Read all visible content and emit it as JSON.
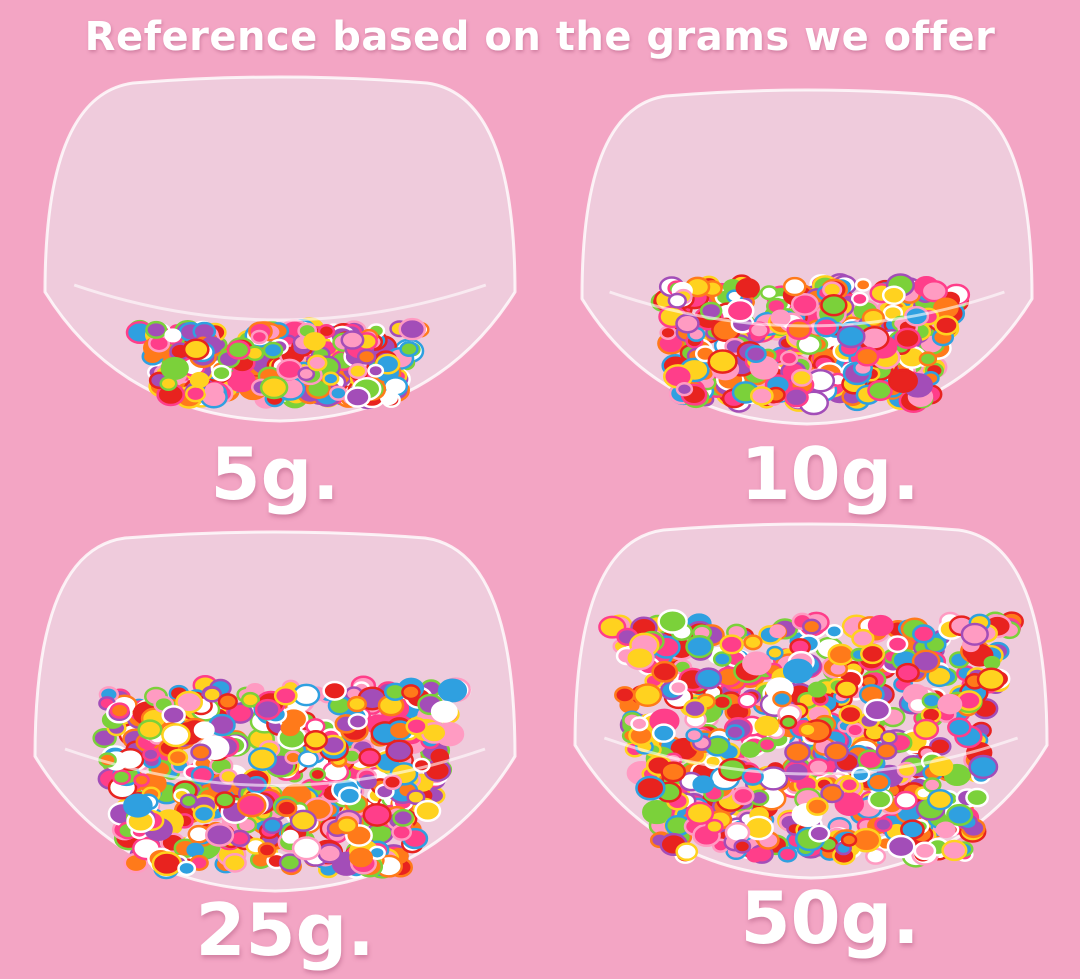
{
  "title": "Reference based on the grams we offer",
  "colors": {
    "background": "#f3a5c4",
    "text": "#ffffff"
  },
  "bowls": [
    {
      "label": "5g.",
      "fill_level": 0.3
    },
    {
      "label": "10g.",
      "fill_level": 0.5
    },
    {
      "label": "25g.",
      "fill_level": 0.7
    },
    {
      "label": "50g.",
      "fill_level": 0.9
    }
  ]
}
